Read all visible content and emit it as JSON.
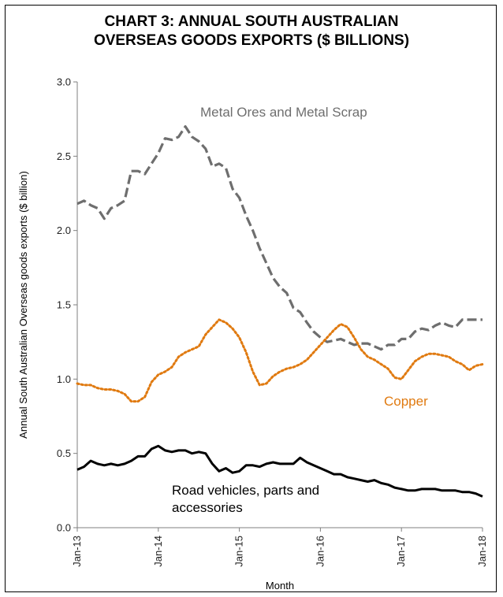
{
  "chart_data": {
    "type": "line",
    "title_lines": [
      "CHART 3: ANNUAL SOUTH AUSTRALIAN",
      "OVERSEAS GOODS EXPORTS ($ BILLIONS)"
    ],
    "xlabel": "Month",
    "ylabel": "Annual South Australian Overseas goods exports ($ billion)",
    "ylim": [
      0,
      3.0
    ],
    "yticks": [
      "0.0",
      "0.5",
      "1.0",
      "1.5",
      "2.0",
      "2.5",
      "3.0"
    ],
    "xticks": [
      "Jan-13",
      "Jan-14",
      "Jan-15",
      "Jan-16",
      "Jan-17",
      "Jan-18"
    ],
    "x_range_months": [
      "Jan-13",
      "Jan-18"
    ],
    "grid": false,
    "legend": "none",
    "series": [
      {
        "name": "Metal Ores and Metal Scrap",
        "label_lines": [
          "Metal Ores and Metal Scrap"
        ],
        "color": "#6e6e6e",
        "style": "dashed",
        "values": [
          2.18,
          2.2,
          2.17,
          2.15,
          2.08,
          2.15,
          2.17,
          2.2,
          2.4,
          2.4,
          2.38,
          2.45,
          2.52,
          2.62,
          2.61,
          2.63,
          2.7,
          2.63,
          2.6,
          2.55,
          2.43,
          2.45,
          2.42,
          2.28,
          2.22,
          2.1,
          2.0,
          1.88,
          1.78,
          1.68,
          1.62,
          1.58,
          1.48,
          1.45,
          1.38,
          1.32,
          1.28,
          1.25,
          1.26,
          1.27,
          1.25,
          1.23,
          1.24,
          1.24,
          1.22,
          1.2,
          1.23,
          1.23,
          1.27,
          1.27,
          1.32,
          1.34,
          1.33,
          1.36,
          1.38,
          1.36,
          1.35,
          1.4,
          1.4,
          1.4,
          1.4
        ]
      },
      {
        "name": "Copper",
        "label_lines": [
          "Copper"
        ],
        "color": "#e07a10",
        "style": "dotted",
        "values": [
          0.97,
          0.96,
          0.96,
          0.94,
          0.93,
          0.93,
          0.92,
          0.9,
          0.85,
          0.85,
          0.88,
          0.98,
          1.03,
          1.05,
          1.08,
          1.15,
          1.18,
          1.2,
          1.22,
          1.3,
          1.35,
          1.4,
          1.38,
          1.34,
          1.28,
          1.18,
          1.05,
          0.96,
          0.97,
          1.02,
          1.05,
          1.07,
          1.08,
          1.1,
          1.13,
          1.18,
          1.23,
          1.28,
          1.33,
          1.37,
          1.35,
          1.28,
          1.2,
          1.15,
          1.13,
          1.1,
          1.07,
          1.01,
          1.0,
          1.06,
          1.12,
          1.15,
          1.17,
          1.17,
          1.16,
          1.15,
          1.12,
          1.1,
          1.06,
          1.09,
          1.1
        ]
      },
      {
        "name": "Road vehicles, parts and accessories",
        "label_lines": [
          "Road vehicles,  parts and",
          "accessories"
        ],
        "color": "#000000",
        "style": "solid",
        "values": [
          0.39,
          0.41,
          0.45,
          0.43,
          0.42,
          0.43,
          0.42,
          0.43,
          0.45,
          0.48,
          0.48,
          0.53,
          0.55,
          0.52,
          0.51,
          0.52,
          0.52,
          0.5,
          0.51,
          0.5,
          0.43,
          0.38,
          0.4,
          0.37,
          0.38,
          0.42,
          0.42,
          0.41,
          0.43,
          0.44,
          0.43,
          0.43,
          0.43,
          0.47,
          0.44,
          0.42,
          0.4,
          0.38,
          0.36,
          0.36,
          0.34,
          0.33,
          0.32,
          0.31,
          0.32,
          0.3,
          0.29,
          0.27,
          0.26,
          0.25,
          0.25,
          0.26,
          0.26,
          0.26,
          0.25,
          0.25,
          0.25,
          0.24,
          0.24,
          0.23,
          0.21
        ]
      }
    ]
  }
}
